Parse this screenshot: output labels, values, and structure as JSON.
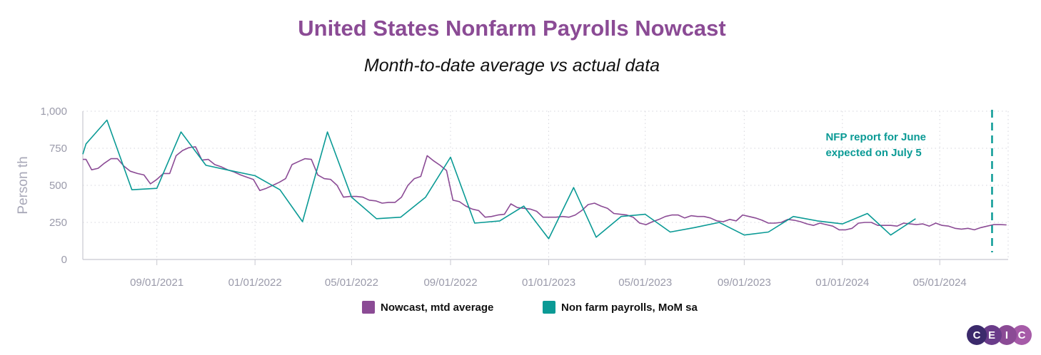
{
  "title": "United States Nonfarm Payrolls Nowcast",
  "subtitle": "Month-to-date average vs actual data",
  "annotation": {
    "line1": "NFP report for June",
    "line2": "expected on July 5",
    "date": "2024-07-05",
    "color": "#0A9A95"
  },
  "logo": {
    "letters": [
      "C",
      "E",
      "I",
      "C"
    ],
    "colors": [
      "#3B2A6B",
      "#6A3C8A",
      "#8B4B95",
      "#A65BA8"
    ]
  },
  "chart_data": {
    "type": "line",
    "title": "United States Nonfarm Payrolls Nowcast",
    "subtitle": "Month-to-date average vs actual data",
    "ylabel": "Person th",
    "ylim": [
      0,
      1000
    ],
    "yticks": [
      0,
      250,
      500,
      750,
      1000
    ],
    "ytick_labels": [
      "0",
      "250",
      "500",
      "750",
      "1,000"
    ],
    "xlim": [
      "2021-06-01",
      "2024-07-25"
    ],
    "xticks": [
      "2021-09-01",
      "2022-01-01",
      "2022-05-01",
      "2022-09-01",
      "2023-01-01",
      "2023-05-01",
      "2023-09-01",
      "2024-01-01",
      "2024-05-01"
    ],
    "xtick_labels": [
      "09/01/2021",
      "01/01/2022",
      "05/01/2022",
      "09/01/2022",
      "01/01/2023",
      "05/01/2023",
      "09/01/2023",
      "01/01/2024",
      "05/01/2024"
    ],
    "grid": true,
    "legend_position": "bottom",
    "series": [
      {
        "name": "Nowcast, mtd average",
        "color": "#8B4B95",
        "points": [
          [
            "2021-06-01",
            675
          ],
          [
            "2021-06-05",
            675
          ],
          [
            "2021-06-12",
            605
          ],
          [
            "2021-06-20",
            615
          ],
          [
            "2021-06-28",
            650
          ],
          [
            "2021-07-06",
            680
          ],
          [
            "2021-07-14",
            680
          ],
          [
            "2021-07-22",
            630
          ],
          [
            "2021-07-30",
            595
          ],
          [
            "2021-08-08",
            580
          ],
          [
            "2021-08-16",
            570
          ],
          [
            "2021-08-24",
            510
          ],
          [
            "2021-09-01",
            540
          ],
          [
            "2021-09-09",
            580
          ],
          [
            "2021-09-17",
            580
          ],
          [
            "2021-09-25",
            700
          ],
          [
            "2021-10-03",
            735
          ],
          [
            "2021-10-11",
            755
          ],
          [
            "2021-10-19",
            760
          ],
          [
            "2021-10-27",
            670
          ],
          [
            "2021-11-04",
            675
          ],
          [
            "2021-11-12",
            640
          ],
          [
            "2021-11-20",
            625
          ],
          [
            "2021-11-28",
            605
          ],
          [
            "2021-12-06",
            590
          ],
          [
            "2021-12-14",
            570
          ],
          [
            "2021-12-22",
            555
          ],
          [
            "2021-12-30",
            540
          ],
          [
            "2022-01-07",
            465
          ],
          [
            "2022-01-15",
            480
          ],
          [
            "2022-01-23",
            500
          ],
          [
            "2022-01-31",
            520
          ],
          [
            "2022-02-08",
            545
          ],
          [
            "2022-02-16",
            640
          ],
          [
            "2022-02-24",
            660
          ],
          [
            "2022-03-04",
            680
          ],
          [
            "2022-03-12",
            675
          ],
          [
            "2022-03-20",
            570
          ],
          [
            "2022-03-28",
            545
          ],
          [
            "2022-04-05",
            540
          ],
          [
            "2022-04-13",
            500
          ],
          [
            "2022-04-21",
            420
          ],
          [
            "2022-04-29",
            425
          ],
          [
            "2022-05-07",
            425
          ],
          [
            "2022-05-15",
            420
          ],
          [
            "2022-05-23",
            400
          ],
          [
            "2022-05-31",
            395
          ],
          [
            "2022-06-08",
            380
          ],
          [
            "2022-06-16",
            385
          ],
          [
            "2022-06-24",
            385
          ],
          [
            "2022-07-02",
            420
          ],
          [
            "2022-07-10",
            500
          ],
          [
            "2022-07-18",
            545
          ],
          [
            "2022-07-26",
            560
          ],
          [
            "2022-08-03",
            700
          ],
          [
            "2022-08-11",
            665
          ],
          [
            "2022-08-19",
            635
          ],
          [
            "2022-08-27",
            600
          ],
          [
            "2022-09-04",
            400
          ],
          [
            "2022-09-12",
            390
          ],
          [
            "2022-09-20",
            360
          ],
          [
            "2022-09-28",
            340
          ],
          [
            "2022-10-06",
            330
          ],
          [
            "2022-10-14",
            285
          ],
          [
            "2022-10-22",
            290
          ],
          [
            "2022-10-30",
            300
          ],
          [
            "2022-11-07",
            305
          ],
          [
            "2022-11-15",
            375
          ],
          [
            "2022-11-23",
            350
          ],
          [
            "2022-12-01",
            345
          ],
          [
            "2022-12-09",
            340
          ],
          [
            "2022-12-17",
            325
          ],
          [
            "2022-12-25",
            285
          ],
          [
            "2023-01-02",
            285
          ],
          [
            "2023-01-10",
            285
          ],
          [
            "2023-01-18",
            290
          ],
          [
            "2023-01-26",
            285
          ],
          [
            "2023-02-03",
            300
          ],
          [
            "2023-02-11",
            330
          ],
          [
            "2023-02-19",
            370
          ],
          [
            "2023-02-27",
            380
          ],
          [
            "2023-03-07",
            360
          ],
          [
            "2023-03-15",
            345
          ],
          [
            "2023-03-23",
            310
          ],
          [
            "2023-03-31",
            305
          ],
          [
            "2023-04-08",
            300
          ],
          [
            "2023-04-16",
            285
          ],
          [
            "2023-04-24",
            245
          ],
          [
            "2023-05-02",
            235
          ],
          [
            "2023-05-10",
            255
          ],
          [
            "2023-05-18",
            270
          ],
          [
            "2023-05-26",
            290
          ],
          [
            "2023-06-03",
            300
          ],
          [
            "2023-06-11",
            300
          ],
          [
            "2023-06-19",
            280
          ],
          [
            "2023-06-27",
            295
          ],
          [
            "2023-07-05",
            290
          ],
          [
            "2023-07-13",
            290
          ],
          [
            "2023-07-21",
            280
          ],
          [
            "2023-07-29",
            260
          ],
          [
            "2023-08-06",
            255
          ],
          [
            "2023-08-14",
            270
          ],
          [
            "2023-08-22",
            260
          ],
          [
            "2023-08-30",
            300
          ],
          [
            "2023-09-07",
            290
          ],
          [
            "2023-09-15",
            280
          ],
          [
            "2023-09-23",
            265
          ],
          [
            "2023-10-01",
            245
          ],
          [
            "2023-10-09",
            245
          ],
          [
            "2023-10-17",
            250
          ],
          [
            "2023-10-25",
            270
          ],
          [
            "2023-11-02",
            265
          ],
          [
            "2023-11-10",
            255
          ],
          [
            "2023-11-18",
            240
          ],
          [
            "2023-11-26",
            230
          ],
          [
            "2023-12-04",
            245
          ],
          [
            "2023-12-12",
            235
          ],
          [
            "2023-12-20",
            225
          ],
          [
            "2023-12-28",
            200
          ],
          [
            "2024-01-05",
            200
          ],
          [
            "2024-01-13",
            210
          ],
          [
            "2024-01-21",
            245
          ],
          [
            "2024-01-29",
            250
          ],
          [
            "2024-02-06",
            250
          ],
          [
            "2024-02-14",
            230
          ],
          [
            "2024-02-22",
            230
          ],
          [
            "2024-03-01",
            230
          ],
          [
            "2024-03-09",
            225
          ],
          [
            "2024-03-17",
            245
          ],
          [
            "2024-03-25",
            240
          ],
          [
            "2024-04-02",
            235
          ],
          [
            "2024-04-10",
            240
          ],
          [
            "2024-04-18",
            225
          ],
          [
            "2024-04-26",
            245
          ],
          [
            "2024-05-04",
            230
          ],
          [
            "2024-05-12",
            225
          ],
          [
            "2024-05-20",
            210
          ],
          [
            "2024-05-28",
            205
          ],
          [
            "2024-06-05",
            210
          ],
          [
            "2024-06-13",
            200
          ],
          [
            "2024-06-21",
            215
          ],
          [
            "2024-06-29",
            225
          ],
          [
            "2024-07-07",
            235
          ],
          [
            "2024-07-15",
            235
          ],
          [
            "2024-07-23",
            233
          ]
        ]
      },
      {
        "name": "Non farm payrolls, MoM sa",
        "color": "#0A9A95",
        "points": [
          [
            "2021-06-01",
            710
          ],
          [
            "2021-06-05",
            780
          ],
          [
            "2021-07-01",
            940
          ],
          [
            "2021-08-01",
            470
          ],
          [
            "2021-09-01",
            480
          ],
          [
            "2021-10-01",
            860
          ],
          [
            "2021-11-01",
            635
          ],
          [
            "2021-12-01",
            600
          ],
          [
            "2022-01-01",
            565
          ],
          [
            "2022-02-01",
            470
          ],
          [
            "2022-03-01",
            255
          ],
          [
            "2022-04-01",
            860
          ],
          [
            "2022-05-01",
            420
          ],
          [
            "2022-06-01",
            275
          ],
          [
            "2022-07-01",
            285
          ],
          [
            "2022-08-01",
            420
          ],
          [
            "2022-09-01",
            690
          ],
          [
            "2022-10-01",
            245
          ],
          [
            "2022-11-01",
            260
          ],
          [
            "2022-12-01",
            360
          ],
          [
            "2023-01-01",
            140
          ],
          [
            "2023-02-01",
            485
          ],
          [
            "2023-03-01",
            150
          ],
          [
            "2023-04-01",
            290
          ],
          [
            "2023-05-01",
            305
          ],
          [
            "2023-06-01",
            185
          ],
          [
            "2023-07-01",
            215
          ],
          [
            "2023-08-01",
            250
          ],
          [
            "2023-09-01",
            165
          ],
          [
            "2023-10-01",
            185
          ],
          [
            "2023-11-01",
            290
          ],
          [
            "2023-12-01",
            260
          ],
          [
            "2024-01-01",
            240
          ],
          [
            "2024-02-01",
            310
          ],
          [
            "2024-03-01",
            165
          ],
          [
            "2024-04-01",
            275
          ]
        ]
      }
    ]
  }
}
